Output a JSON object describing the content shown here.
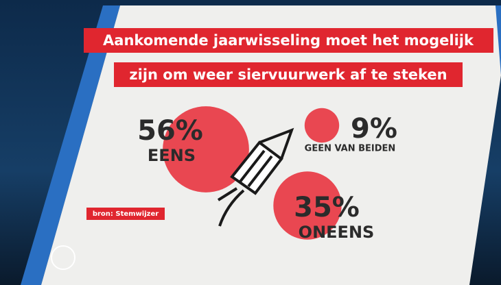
{
  "chart_data": {
    "type": "bubble",
    "title": [
      "Aankomende jaarwisseling moet het mogelijk",
      "zijn om weer siervuurwerk af te steken"
    ],
    "categories": [
      "EENS",
      "GEEN VAN BEIDEN",
      "ONEENS"
    ],
    "values": [
      56,
      9,
      35
    ],
    "value_labels": [
      "56%",
      "9%",
      "35%"
    ],
    "color": "#e8343f",
    "source": "bron: Stemwijzer"
  }
}
